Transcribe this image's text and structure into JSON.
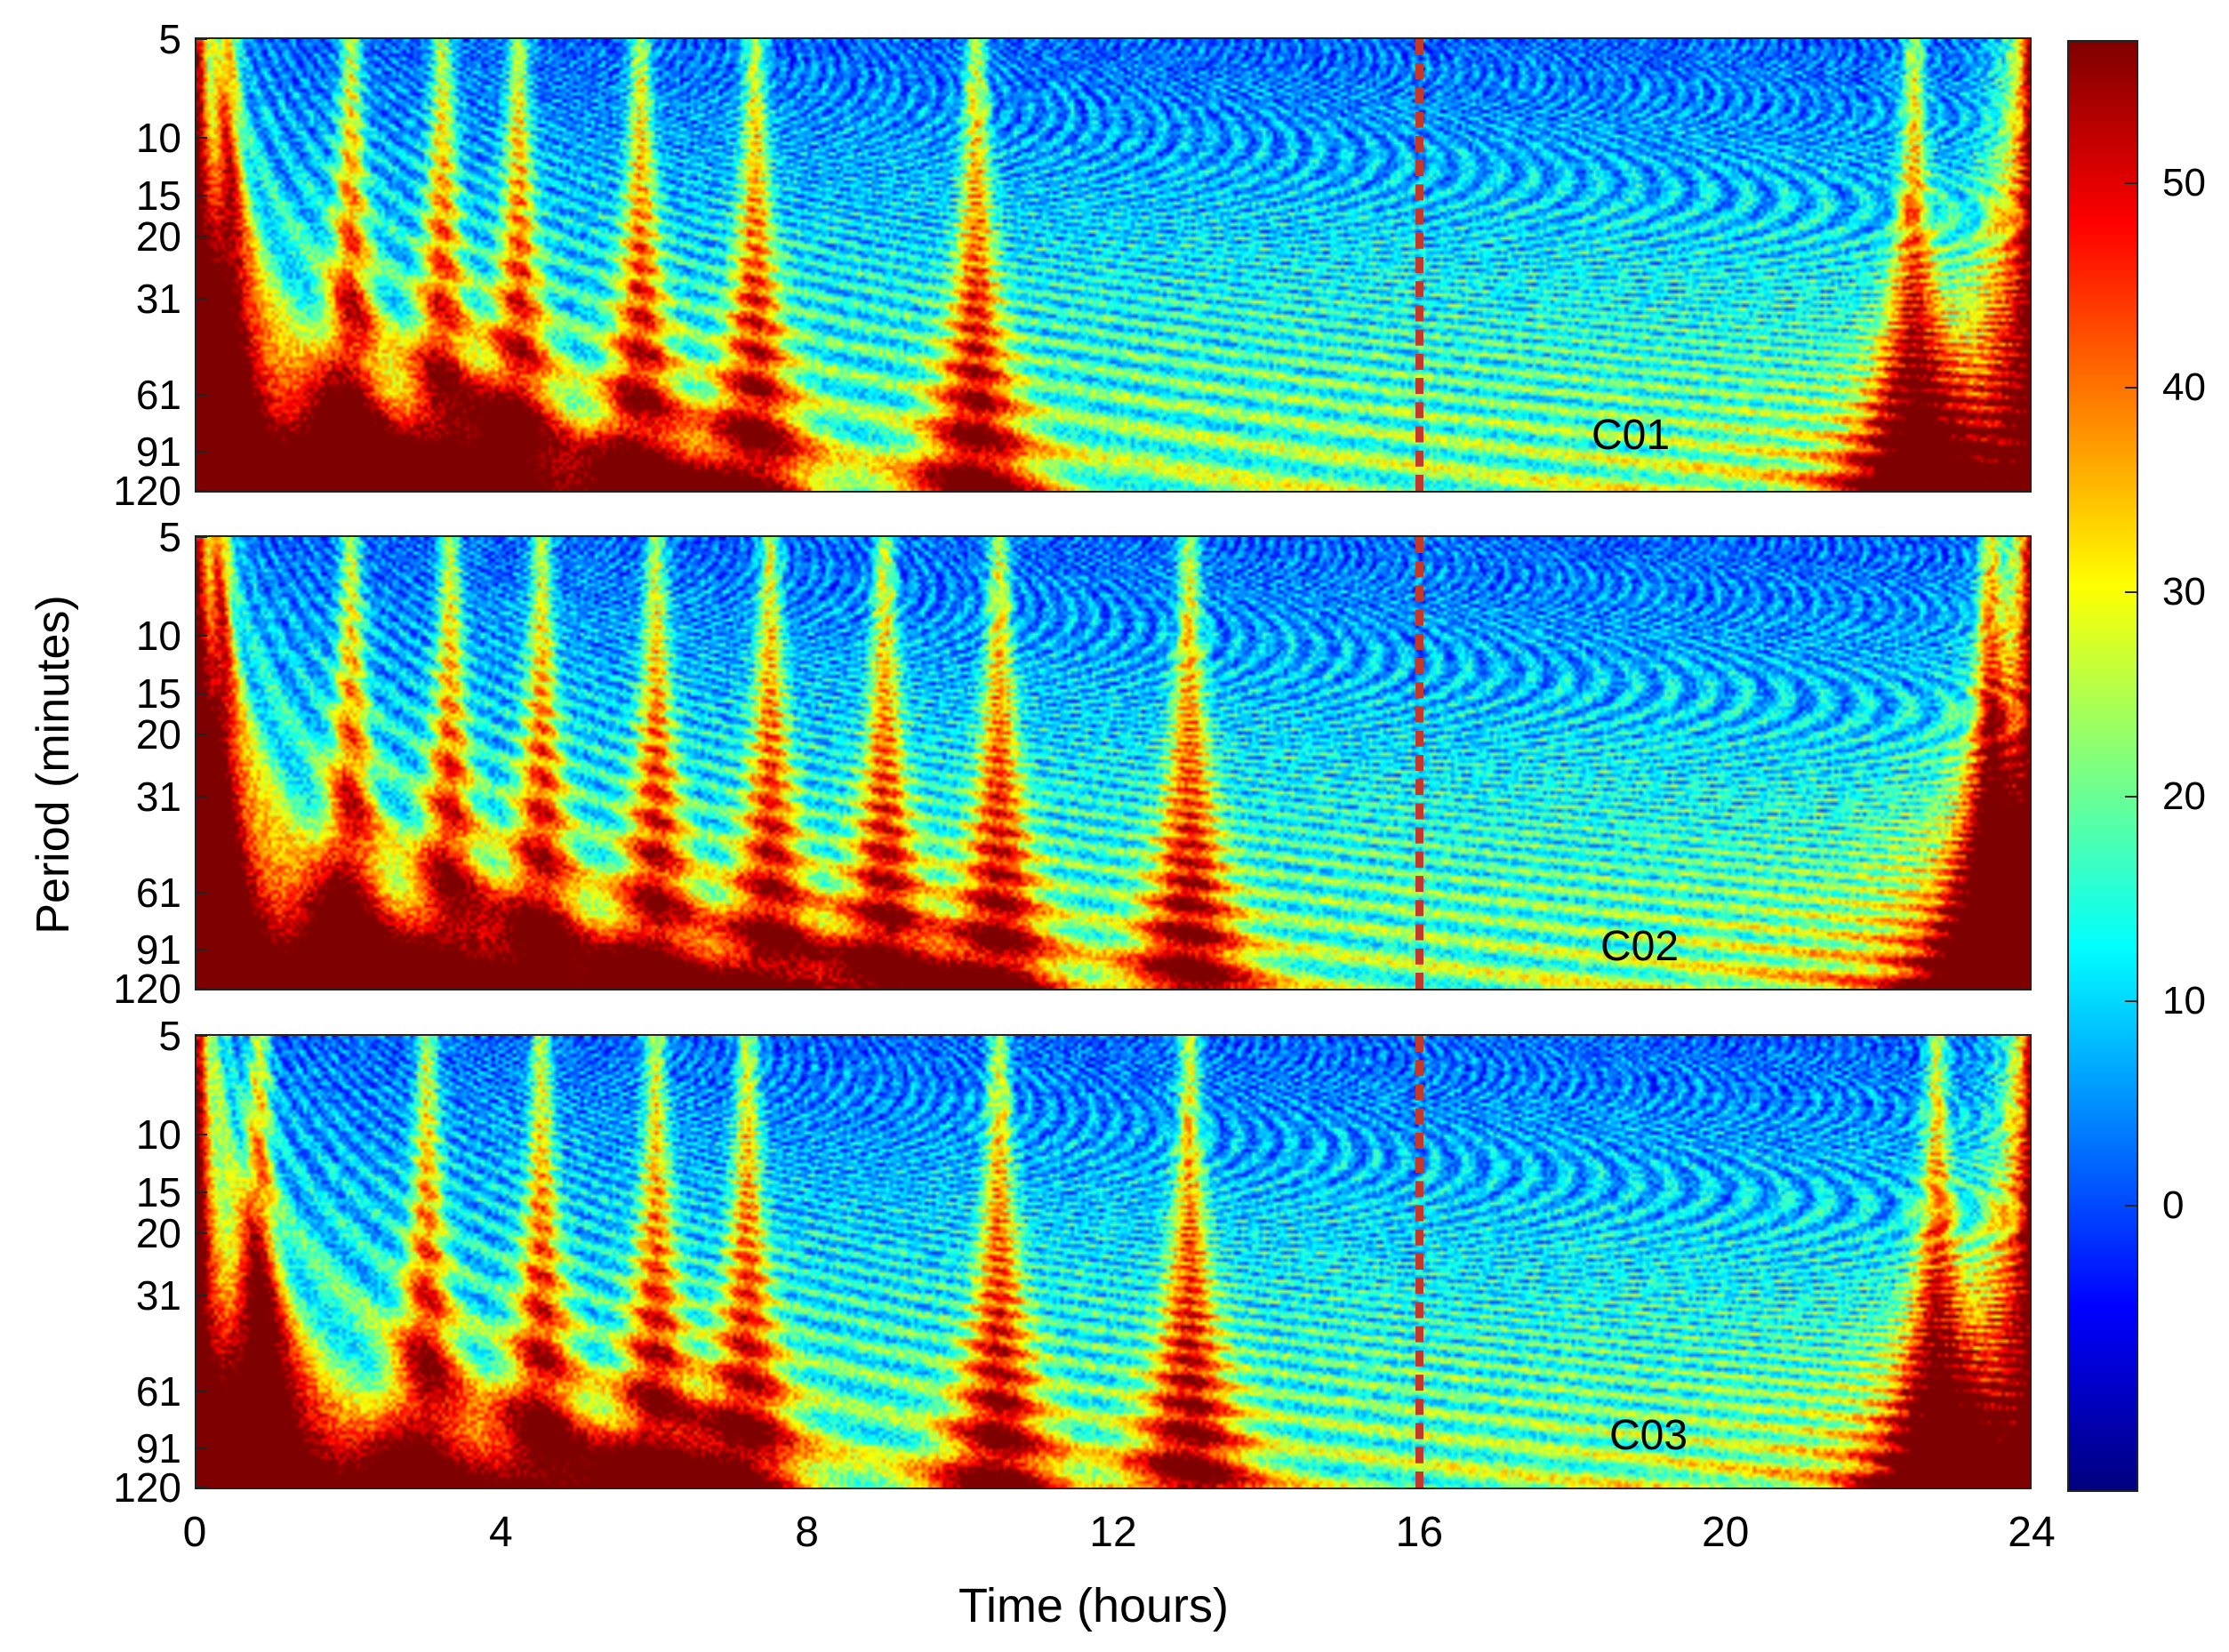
{
  "chart_data": {
    "type": "heatmap",
    "panels": [
      {
        "name": "C01",
        "strong_events_hours": [
          0.4,
          2.0,
          3.2,
          4.2,
          5.8,
          7.3,
          10.2,
          22.5
        ]
      },
      {
        "name": "C02",
        "strong_events_hours": [
          0.3,
          2.0,
          3.3,
          4.5,
          6.0,
          7.5,
          9.0,
          10.5,
          13.0,
          23.5
        ]
      },
      {
        "name": "C03",
        "strong_events_hours": [
          0.8,
          3.0,
          4.5,
          6.0,
          7.2,
          10.5,
          13.0,
          22.8
        ]
      }
    ],
    "xlabel": "Time (hours)",
    "ylabel": "Period (minutes)",
    "x_ticks": [
      "0",
      "4",
      "8",
      "12",
      "16",
      "20",
      "24"
    ],
    "xlim": [
      0,
      24
    ],
    "y_ticks": [
      "5",
      "10",
      "15",
      "20",
      "31",
      "61",
      "91",
      "120"
    ],
    "y_tick_values": [
      5,
      10,
      15,
      20,
      31,
      61,
      91,
      120
    ],
    "ylim": [
      5,
      120
    ],
    "y_scale": "log",
    "colorbar_ticks": [
      "0",
      "10",
      "20",
      "30",
      "40",
      "50"
    ],
    "colorbar_tick_values": [
      0,
      10,
      20,
      30,
      40,
      50
    ],
    "colorbar_range": [
      -14,
      57
    ],
    "colormap": "jet",
    "reference_line": {
      "x": 16,
      "color": "#c0392b",
      "style": "dashed"
    }
  }
}
